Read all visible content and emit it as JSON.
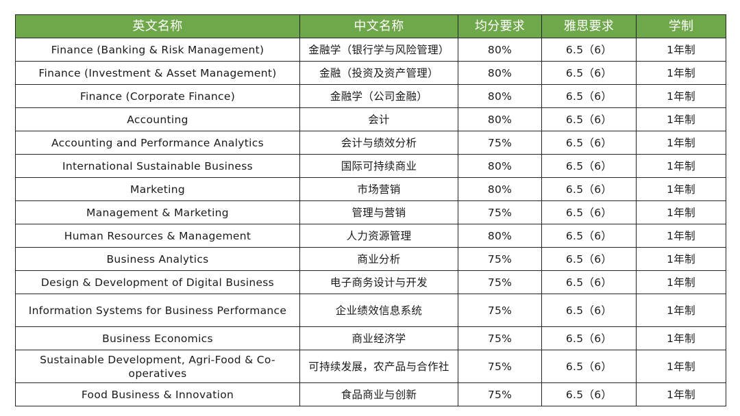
{
  "headers": [
    "英文名称",
    "中文名称",
    "均分要求",
    "雅思要求",
    "学制"
  ],
  "colors": {
    "header_bg": "#6fa84b"
  },
  "rows": [
    [
      "Finance (Banking & Risk Management)",
      "金融学（银行学与风险管理）",
      "80%",
      "6.5（6）",
      "1年制"
    ],
    [
      "Finance (Investment & Asset Management)",
      "金融（投资及资产管理）",
      "80%",
      "6.5（6）",
      "1年制"
    ],
    [
      "Finance (Corporate Finance)",
      "金融学（公司金融）",
      "80%",
      "6.5（6）",
      "1年制"
    ],
    [
      "Accounting",
      "会计",
      "80%",
      "6.5（6）",
      "1年制"
    ],
    [
      "Accounting and Performance Analytics",
      "会计与绩效分析",
      "75%",
      "6.5（6）",
      "1年制"
    ],
    [
      "International Sustainable Business",
      "国际可持续商业",
      "80%",
      "6.5（6）",
      "1年制"
    ],
    [
      "Marketing",
      "市场营销",
      "80%",
      "6.5（6）",
      "1年制"
    ],
    [
      "Management & Marketing",
      "管理与营销",
      "75%",
      "6.5（6）",
      "1年制"
    ],
    [
      "Human Resources & Management",
      "人力资源管理",
      "80%",
      "6.5（6）",
      "1年制"
    ],
    [
      "Business Analytics",
      "商业分析",
      "75%",
      "6.5（6）",
      "1年制"
    ],
    [
      "Design & Development of Digital Business",
      "电子商务设计与开发",
      "75%",
      "6.5（6）",
      "1年制"
    ],
    [
      "Information Systems for Business Performance",
      "企业绩效信息系统",
      "75%",
      "6.5（6）",
      "1年制"
    ],
    [
      "Business Economics",
      "商业经济学",
      "75%",
      "6.5（6）",
      "1年制"
    ],
    [
      "Sustainable Development, Agri-Food & Co-operatives",
      "可持续发展，农产品与合作社",
      "75%",
      "6.5（6）",
      "1年制"
    ],
    [
      "Food Business & Innovation",
      "食品商业与创新",
      "75%",
      "6.5（6）",
      "1年制"
    ]
  ]
}
